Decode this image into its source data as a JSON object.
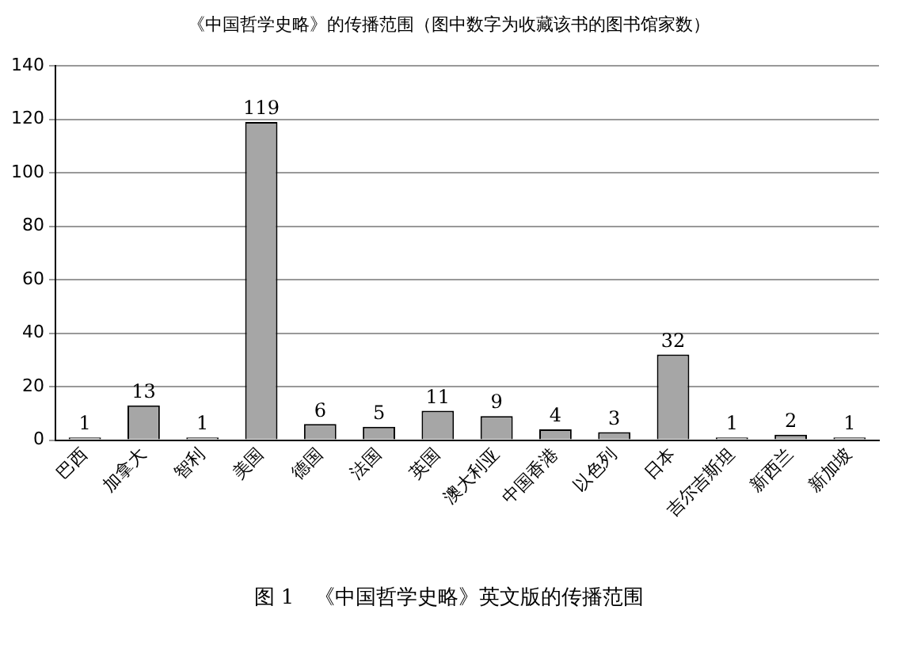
{
  "chart_data": {
    "type": "bar",
    "title": "《中国哲学史略》的传播范围（图中数字为收藏该书的图书馆家数）",
    "categories": [
      "巴西",
      "加拿大",
      "智利",
      "美国",
      "德国",
      "法国",
      "英国",
      "澳大利亚",
      "中国香港",
      "以色列",
      "日本",
      "吉尔吉斯坦",
      "新西兰",
      "新加坡"
    ],
    "values": [
      1,
      13,
      1,
      119,
      6,
      5,
      11,
      9,
      4,
      3,
      32,
      1,
      2,
      1
    ],
    "color": "#a6a6a6",
    "ylim": [
      0,
      140
    ],
    "yticks": [
      0,
      20,
      40,
      60,
      80,
      100,
      120,
      140
    ],
    "grid": "y",
    "data_labels": true,
    "annotations": [
      "图 1　《中国哲学史略》英文版的传播范围"
    ]
  }
}
